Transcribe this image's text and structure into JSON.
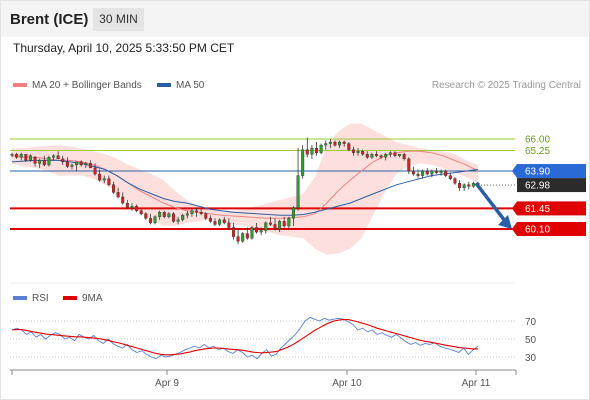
{
  "header": {
    "symbol": "Brent (ICE)",
    "timeframe": "30 MIN"
  },
  "timestamp": "Thursday, April 10, 2025 5:33:50 PM CET",
  "legend": {
    "ma20": {
      "label": "MA 20 + Bollinger Bands",
      "color": "#f08080"
    },
    "ma50": {
      "label": "MA 50",
      "color": "#2a5fa8"
    },
    "credit": "Research © 2025 Trading Central"
  },
  "rsi_legend": {
    "rsi": {
      "label": "RSI",
      "color": "#5b7fd6"
    },
    "ma9": {
      "label": "9MA",
      "color": "#e00000"
    }
  },
  "chart_data": [
    {
      "type": "candlestick",
      "x_labels": [
        "Apr 9",
        "Apr 10",
        "Apr 11"
      ],
      "ylim": [
        58.3,
        67.1
      ],
      "levels": [
        {
          "label": "66.00",
          "value": 66.0,
          "kind": "resistance",
          "color": "#9acd32"
        },
        {
          "label": "65.25",
          "value": 65.25,
          "kind": "resistance",
          "color": "#9acd32"
        },
        {
          "label": "63.90",
          "value": 63.9,
          "kind": "pivot",
          "color": "#2a5fa8"
        },
        {
          "label": "61.45",
          "value": 61.45,
          "kind": "support",
          "color": "#e00000"
        },
        {
          "label": "60.10",
          "value": 60.1,
          "kind": "support",
          "color": "#e00000"
        }
      ],
      "last_price": {
        "label": "62.98",
        "value": 62.98
      },
      "forecast": {
        "from": 63.1,
        "to": 60.1,
        "direction": "down"
      },
      "ma20": [
        64.9,
        64.8,
        64.8,
        64.7,
        64.6,
        64.6,
        64.5,
        64.3,
        64.0,
        63.6,
        63.1,
        62.6,
        62.2,
        61.8,
        61.5,
        61.3,
        61.2,
        61.1,
        61.0,
        60.95,
        60.9,
        60.85,
        60.8,
        60.8,
        60.85,
        60.9,
        61.1,
        61.8,
        62.6,
        63.3,
        63.9,
        64.5,
        64.9,
        65.1,
        65.2,
        65.2,
        65.1,
        64.9,
        64.6,
        64.3,
        63.9
      ],
      "bb_upper": [
        65.4,
        65.4,
        65.5,
        65.55,
        65.6,
        65.5,
        65.4,
        65.2,
        65.0,
        64.7,
        64.3,
        64.0,
        63.7,
        63.3,
        62.6,
        62.0,
        61.6,
        61.4,
        61.3,
        61.3,
        61.4,
        61.6,
        61.8,
        62.0,
        62.2,
        62.4,
        63.5,
        65.5,
        66.5,
        67.0,
        67.0,
        66.6,
        66.2,
        65.8,
        65.6,
        65.4,
        65.3,
        65.2,
        65.0,
        64.6,
        64.3
      ],
      "bb_lower": [
        64.4,
        64.2,
        64.1,
        63.9,
        63.6,
        63.6,
        63.6,
        63.4,
        63.0,
        62.5,
        61.9,
        61.2,
        60.7,
        60.3,
        60.3,
        60.5,
        60.6,
        60.7,
        60.6,
        60.4,
        60.3,
        60.1,
        59.9,
        59.7,
        59.6,
        59.5,
        58.8,
        58.4,
        58.5,
        58.8,
        59.5,
        61.0,
        62.5,
        63.7,
        64.2,
        64.4,
        64.3,
        64.1,
        63.8,
        63.5,
        63.1
      ],
      "ma50": [
        64.5,
        64.55,
        64.6,
        64.6,
        64.6,
        64.5,
        64.4,
        64.2,
        64.0,
        63.6,
        63.1,
        62.7,
        62.4,
        62.1,
        61.9,
        61.8,
        61.6,
        61.4,
        61.3,
        61.2,
        61.15,
        61.1,
        61.05,
        61.0,
        61.0,
        61.05,
        61.2,
        61.4,
        61.6,
        61.8,
        62.1,
        62.4,
        62.7,
        63.0,
        63.2,
        63.4,
        63.6,
        63.7,
        63.8,
        63.9,
        64.0
      ],
      "candles": [
        [
          65.0,
          65.1,
          64.8,
          65.0
        ],
        [
          65.0,
          65.1,
          64.7,
          64.8
        ],
        [
          64.8,
          65.1,
          64.6,
          65.0
        ],
        [
          65.0,
          65.0,
          64.5,
          64.6
        ],
        [
          64.6,
          65.0,
          64.5,
          64.9
        ],
        [
          64.8,
          64.9,
          64.2,
          64.4
        ],
        [
          64.4,
          64.7,
          64.1,
          64.6
        ],
        [
          64.6,
          64.9,
          64.2,
          64.3
        ],
        [
          64.3,
          64.9,
          64.2,
          64.8
        ],
        [
          64.8,
          65.0,
          64.6,
          64.9
        ],
        [
          64.9,
          65.2,
          64.7,
          64.7
        ],
        [
          64.7,
          64.9,
          64.3,
          64.5
        ],
        [
          64.5,
          64.8,
          64.1,
          64.2
        ],
        [
          64.2,
          64.4,
          64.0,
          64.3
        ],
        [
          64.3,
          64.5,
          63.9,
          64.5
        ],
        [
          64.5,
          64.6,
          64.2,
          64.3
        ],
        [
          64.3,
          64.5,
          64.1,
          64.4
        ],
        [
          64.4,
          64.6,
          64.1,
          64.1
        ],
        [
          64.1,
          64.4,
          63.6,
          63.7
        ],
        [
          63.7,
          64.0,
          63.2,
          63.3
        ],
        [
          63.3,
          63.6,
          63.1,
          63.4
        ],
        [
          63.4,
          63.6,
          62.9,
          63.0
        ],
        [
          63.0,
          63.2,
          62.4,
          62.5
        ],
        [
          62.5,
          62.8,
          62.1,
          62.2
        ],
        [
          62.2,
          62.5,
          61.7,
          61.8
        ],
        [
          61.8,
          62.0,
          61.4,
          61.5
        ],
        [
          61.5,
          61.8,
          61.3,
          61.6
        ],
        [
          61.6,
          61.7,
          61.2,
          61.3
        ],
        [
          61.3,
          61.4,
          61.0,
          61.1
        ],
        [
          61.1,
          61.2,
          60.7,
          60.8
        ],
        [
          60.8,
          61.1,
          60.4,
          60.5
        ],
        [
          60.5,
          61.0,
          60.4,
          60.9
        ],
        [
          60.9,
          61.3,
          60.7,
          61.2
        ],
        [
          61.2,
          61.3,
          60.8,
          60.9
        ],
        [
          60.9,
          61.2,
          60.8,
          61.1
        ],
        [
          61.1,
          61.2,
          60.5,
          60.6
        ],
        [
          60.6,
          60.9,
          60.4,
          60.7
        ],
        [
          60.7,
          61.1,
          60.6,
          61.0
        ],
        [
          61.0,
          61.3,
          60.8,
          61.1
        ],
        [
          61.1,
          61.4,
          60.9,
          61.3
        ],
        [
          61.3,
          61.5,
          60.9,
          61.2
        ],
        [
          61.2,
          61.4,
          61.0,
          61.1
        ],
        [
          61.1,
          61.2,
          60.7,
          60.8
        ],
        [
          60.8,
          61.0,
          60.5,
          60.6
        ],
        [
          60.6,
          60.8,
          60.3,
          60.4
        ],
        [
          60.4,
          60.8,
          60.3,
          60.7
        ],
        [
          60.7,
          60.9,
          60.4,
          60.5
        ],
        [
          60.5,
          60.8,
          60.1,
          60.2
        ],
        [
          60.2,
          60.5,
          59.4,
          59.6
        ],
        [
          59.6,
          60.1,
          59.1,
          59.3
        ],
        [
          59.3,
          59.9,
          59.2,
          59.8
        ],
        [
          59.8,
          60.2,
          59.4,
          59.5
        ],
        [
          59.5,
          60.3,
          59.4,
          60.2
        ],
        [
          60.2,
          60.5,
          59.8,
          59.9
        ],
        [
          59.9,
          60.2,
          59.7,
          60.0
        ],
        [
          60.0,
          60.6,
          59.8,
          60.5
        ],
        [
          60.5,
          60.9,
          60.3,
          60.4
        ],
        [
          60.4,
          60.8,
          60.0,
          60.1
        ],
        [
          60.1,
          60.7,
          59.9,
          60.6
        ],
        [
          60.6,
          60.9,
          60.2,
          60.3
        ],
        [
          60.3,
          60.9,
          60.1,
          60.8
        ],
        [
          60.8,
          61.6,
          60.3,
          61.5
        ],
        [
          61.5,
          65.4,
          61.3,
          63.6
        ],
        [
          63.6,
          65.6,
          63.4,
          65.3
        ],
        [
          65.3,
          66.1,
          64.8,
          65.0
        ],
        [
          65.0,
          65.6,
          64.7,
          65.4
        ],
        [
          65.4,
          65.8,
          64.9,
          65.1
        ],
        [
          65.1,
          65.7,
          65.0,
          65.6
        ],
        [
          65.6,
          65.9,
          65.3,
          65.7
        ],
        [
          65.7,
          66.0,
          65.4,
          65.8
        ],
        [
          65.8,
          65.9,
          65.5,
          65.6
        ],
        [
          65.6,
          65.9,
          65.4,
          65.8
        ],
        [
          65.8,
          65.9,
          65.5,
          65.7
        ],
        [
          65.7,
          65.8,
          65.2,
          65.3
        ],
        [
          65.3,
          65.5,
          64.9,
          65.1
        ],
        [
          65.1,
          65.4,
          64.9,
          65.2
        ],
        [
          65.2,
          65.3,
          64.9,
          65.0
        ],
        [
          65.0,
          65.2,
          64.7,
          64.8
        ],
        [
          64.8,
          65.1,
          64.7,
          65.0
        ],
        [
          65.0,
          65.2,
          64.8,
          64.9
        ],
        [
          64.9,
          65.0,
          64.7,
          64.8
        ],
        [
          64.8,
          65.1,
          64.6,
          65.0
        ],
        [
          65.0,
          65.2,
          64.8,
          65.1
        ],
        [
          65.1,
          65.2,
          64.8,
          64.9
        ],
        [
          64.9,
          65.0,
          64.8,
          65.0
        ],
        [
          65.0,
          65.1,
          64.6,
          64.7
        ],
        [
          64.7,
          64.8,
          63.7,
          63.9
        ],
        [
          63.9,
          64.2,
          63.6,
          63.7
        ],
        [
          63.7,
          64.0,
          63.4,
          63.6
        ],
        [
          63.6,
          64.0,
          63.4,
          63.9
        ],
        [
          63.9,
          64.1,
          63.6,
          63.7
        ],
        [
          63.7,
          64.0,
          63.5,
          63.9
        ],
        [
          63.9,
          64.1,
          63.7,
          63.8
        ],
        [
          63.8,
          64.0,
          63.6,
          63.9
        ],
        [
          63.9,
          64.0,
          63.5,
          63.6
        ],
        [
          63.6,
          63.8,
          63.3,
          63.4
        ],
        [
          63.4,
          63.5,
          63.0,
          63.1
        ],
        [
          63.1,
          63.3,
          62.6,
          62.8
        ],
        [
          62.8,
          63.1,
          62.6,
          63.0
        ],
        [
          63.0,
          63.2,
          62.7,
          62.9
        ],
        [
          62.9,
          63.2,
          62.8,
          63.1
        ],
        [
          63.1,
          63.2,
          62.9,
          62.98
        ]
      ]
    },
    {
      "type": "line",
      "title": "RSI",
      "x_labels": [
        "Apr 9",
        "Apr 10",
        "Apr 11"
      ],
      "ylim": [
        18,
        82
      ],
      "yticks": [
        70,
        50,
        30
      ],
      "series": [
        {
          "name": "RSI",
          "color": "#5b7fd6",
          "values": [
            60,
            62,
            60,
            55,
            58,
            52,
            55,
            50,
            54,
            57,
            55,
            50,
            52,
            48,
            55,
            52,
            50,
            54,
            48,
            45,
            50,
            45,
            42,
            40,
            44,
            38,
            35,
            37,
            33,
            30,
            28,
            32,
            30,
            31,
            33,
            35,
            38,
            40,
            42,
            40,
            44,
            40,
            42,
            38,
            40,
            36,
            34,
            38,
            35,
            30,
            32,
            28,
            34,
            38,
            31,
            33,
            40,
            45,
            50,
            55,
            62,
            70,
            74,
            72,
            70,
            73,
            71,
            72,
            73,
            72,
            69,
            66,
            60,
            62,
            58,
            60,
            55,
            57,
            54,
            52,
            55,
            51,
            47,
            44,
            46,
            43,
            45,
            44,
            46,
            42,
            40,
            39,
            37,
            35,
            40,
            33,
            38,
            42
          ]
        },
        {
          "name": "9MA",
          "color": "#e00000",
          "values": [
            60,
            60.5,
            60.5,
            59.5,
            58.5,
            57.5,
            56.5,
            55.5,
            55,
            54.5,
            54,
            53.5,
            53,
            52.5,
            52.5,
            52,
            51.5,
            51,
            50.5,
            49.5,
            48.5,
            47,
            46,
            44.5,
            43,
            41.5,
            40,
            38.5,
            37,
            35.5,
            34,
            33,
            32.5,
            32.5,
            33,
            33.5,
            34.5,
            35.5,
            37,
            38,
            39,
            39.5,
            40,
            40,
            39.5,
            39,
            38.5,
            38,
            37.5,
            36.5,
            35.5,
            35,
            34.5,
            35,
            35.5,
            36,
            38,
            40,
            42.5,
            45.5,
            49,
            52.5,
            56,
            59.5,
            62.5,
            65.5,
            68,
            70,
            71,
            71.5,
            71.5,
            70.5,
            69,
            67.5,
            66,
            64,
            62,
            60.5,
            59,
            57.5,
            56,
            54.5,
            53,
            51.5,
            50,
            48.5,
            47.5,
            46.5,
            45.5,
            44.5,
            43.5,
            42.5,
            41.5,
            40.5,
            40,
            39.5,
            39,
            39
          ]
        }
      ]
    }
  ]
}
